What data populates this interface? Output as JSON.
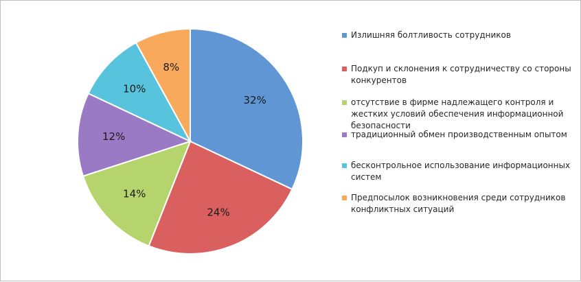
{
  "chart_data": {
    "type": "pie",
    "title": "",
    "categories": [
      "Излишняя болтливость сотрудников",
      "Подкуп и склонения к сотрудничеству со стороны конкурентов",
      "отсутствие в фирме надлежащего контроля и жестких условий обеспечения информационной безопасности",
      "традиционный обмен производственным опытом",
      "бесконтрольное использование информационных систем",
      "Предпосылок возникновения среди сотрудников конфликтных ситуаций"
    ],
    "values": [
      32,
      24,
      14,
      12,
      10,
      8
    ],
    "labels": [
      "32%",
      "24%",
      "14%",
      "12%",
      "10%",
      "8%"
    ],
    "colors": [
      "#6096d4",
      "#d9605e",
      "#b5d46e",
      "#9a7ac4",
      "#58c3dc",
      "#f9a95b"
    ],
    "legend_position": "right"
  }
}
